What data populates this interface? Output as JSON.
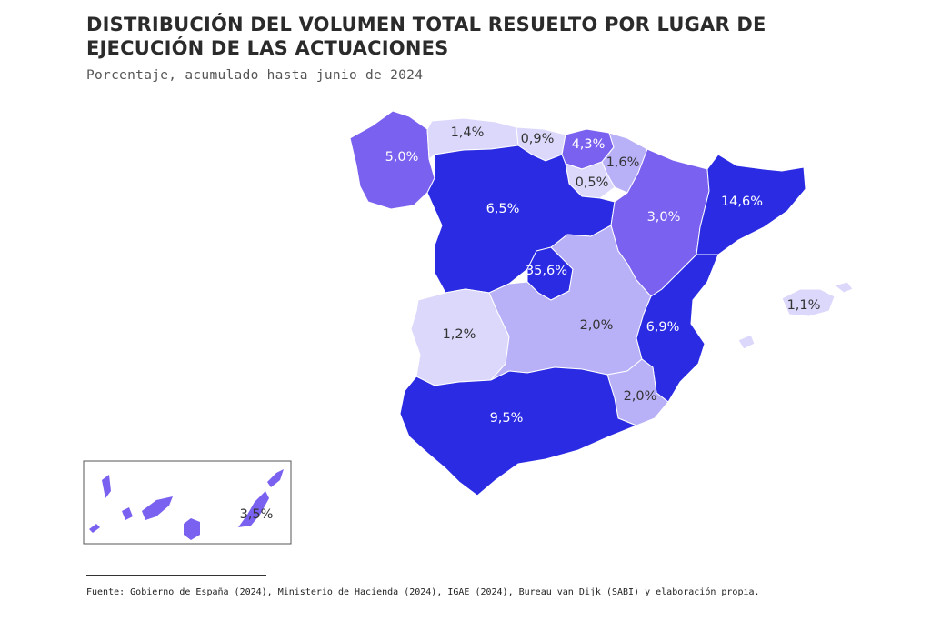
{
  "header": {
    "title": "DISTRIBUCIÓN DEL VOLUMEN TOTAL RESUELTO POR LUGAR DE EJECUCIÓN DE LAS ACTUACIONES",
    "subtitle": "Porcentaje, acumulado hasta junio de 2024"
  },
  "colors": {
    "level_max": "#2a2be3",
    "level_mid": "#7b61f0",
    "level_low": "#b9b1f7",
    "level_min": "#dcd8fb"
  },
  "regions": {
    "galicia": "5,0%",
    "asturias": "1,4%",
    "cantabria": "0,9%",
    "pais_vasco": "4,3%",
    "navarra": "1,6%",
    "la_rioja": "0,5%",
    "castilla_leon": "6,5%",
    "aragon": "3,0%",
    "cataluna": "14,6%",
    "madrid": "35,6%",
    "extremadura": "1,2%",
    "castilla_la_mancha": "2,0%",
    "valencia": "6,9%",
    "murcia": "2,0%",
    "andalucia": "9,5%",
    "baleares": "1,1%",
    "canarias": "3,5%"
  },
  "footer": {
    "source": "Fuente: Gobierno de España (2024), Ministerio de Hacienda (2024), IGAE (2024), Bureau van Dijk (SABI) y elaboración propia."
  }
}
